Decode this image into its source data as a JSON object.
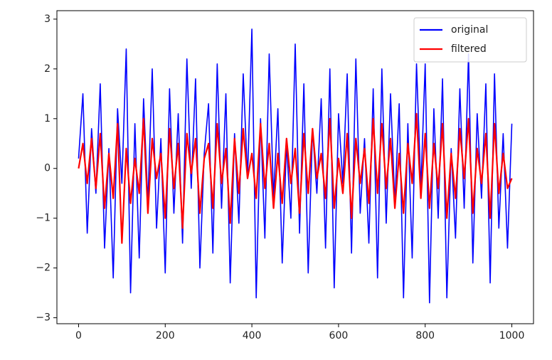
{
  "chart_data": {
    "type": "line",
    "x": [
      0,
      10,
      20,
      30,
      40,
      50,
      60,
      70,
      80,
      90,
      100,
      110,
      120,
      130,
      140,
      150,
      160,
      170,
      180,
      190,
      200,
      210,
      220,
      230,
      240,
      250,
      260,
      270,
      280,
      290,
      300,
      310,
      320,
      330,
      340,
      350,
      360,
      370,
      380,
      390,
      400,
      410,
      420,
      430,
      440,
      450,
      460,
      470,
      480,
      490,
      500,
      510,
      520,
      530,
      540,
      550,
      560,
      570,
      580,
      590,
      600,
      610,
      620,
      630,
      640,
      650,
      660,
      670,
      680,
      690,
      700,
      710,
      720,
      730,
      740,
      750,
      760,
      770,
      780,
      790,
      800,
      810,
      820,
      830,
      840,
      850,
      860,
      870,
      880,
      890,
      900,
      910,
      920,
      930,
      940,
      950,
      960,
      970,
      980,
      990,
      1000
    ],
    "series": [
      {
        "name": "original",
        "color": "#0000ff",
        "values": [
          0.2,
          1.5,
          -1.3,
          0.8,
          -0.5,
          1.7,
          -1.6,
          0.4,
          -2.2,
          1.2,
          -0.3,
          2.4,
          -2.5,
          0.9,
          -1.8,
          1.4,
          -0.7,
          2.0,
          -1.2,
          0.6,
          -2.1,
          1.6,
          -0.9,
          1.1,
          -1.5,
          2.2,
          -0.4,
          1.8,
          -2.0,
          0.3,
          1.3,
          -1.7,
          2.1,
          -0.8,
          1.5,
          -2.3,
          0.7,
          -1.1,
          1.9,
          -0.2,
          2.8,
          -2.6,
          1.0,
          -1.4,
          2.3,
          -0.6,
          1.2,
          -1.9,
          0.5,
          -1.0,
          2.5,
          -1.3,
          1.7,
          -2.1,
          0.8,
          -0.5,
          1.4,
          -1.6,
          2.0,
          -2.4,
          1.1,
          -0.3,
          1.9,
          -1.7,
          2.2,
          -0.9,
          0.6,
          -1.5,
          1.6,
          -2.2,
          2.0,
          -1.1,
          1.5,
          -0.7,
          1.3,
          -2.6,
          0.9,
          -1.8,
          2.1,
          -0.4,
          2.1,
          -2.7,
          1.2,
          -1.0,
          1.8,
          -2.6,
          0.4,
          -1.4,
          1.6,
          -0.8,
          2.3,
          -1.9,
          1.1,
          -0.6,
          1.7,
          -2.3,
          1.9,
          -1.2,
          0.7,
          -1.6,
          0.9
        ]
      },
      {
        "name": "filtered",
        "color": "#ff0000",
        "values": [
          0.0,
          0.5,
          -0.3,
          0.6,
          -0.4,
          0.7,
          -0.8,
          0.3,
          -0.6,
          0.9,
          -1.5,
          0.4,
          -0.7,
          0.2,
          -0.5,
          1.0,
          -0.9,
          0.6,
          -0.2,
          0.3,
          -1.0,
          0.8,
          -0.4,
          0.5,
          -1.2,
          0.7,
          -0.1,
          0.6,
          -0.9,
          0.2,
          0.5,
          -0.8,
          0.9,
          -0.3,
          0.4,
          -1.1,
          0.6,
          -0.5,
          0.8,
          -0.2,
          0.3,
          -0.6,
          0.9,
          -0.4,
          0.5,
          -0.8,
          0.3,
          -0.7,
          0.6,
          -0.3,
          0.4,
          -0.9,
          0.7,
          -0.5,
          0.8,
          -0.2,
          0.3,
          -0.6,
          1.0,
          -0.8,
          0.2,
          -0.5,
          0.7,
          -1.0,
          0.6,
          -0.3,
          0.4,
          -0.7,
          1.0,
          -0.5,
          0.9,
          -0.4,
          0.6,
          -0.8,
          0.3,
          -0.9,
          0.5,
          -0.3,
          1.1,
          -0.6,
          0.7,
          -0.8,
          0.5,
          -0.4,
          0.9,
          -1.0,
          0.3,
          -0.6,
          0.8,
          -0.2,
          1.0,
          -0.9,
          0.4,
          -0.3,
          0.7,
          -1.0,
          0.9,
          -0.5,
          0.3,
          -0.4,
          -0.2
        ]
      }
    ],
    "xlim": [
      -50,
      1050
    ],
    "xticks": [
      0,
      200,
      400,
      600,
      800,
      1000
    ],
    "ylim": [
      -3.12,
      3.17
    ],
    "yticks": [
      {
        "value": -3,
        "label": "−3"
      },
      {
        "value": -2,
        "label": "−2"
      },
      {
        "value": -1,
        "label": "−1"
      },
      0,
      1,
      2,
      3
    ],
    "legend": "upper right"
  }
}
